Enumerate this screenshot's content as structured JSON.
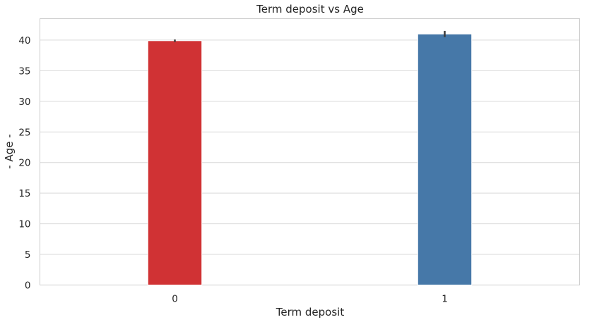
{
  "chart_data": {
    "type": "bar",
    "title": "Term deposit vs Age",
    "xlabel": "Term deposit",
    "ylabel": "- Age -",
    "categories": [
      "0",
      "1"
    ],
    "values": [
      39.9,
      41.0
    ],
    "error_bars": [
      [
        39.7,
        40.1
      ],
      [
        40.5,
        41.5
      ]
    ],
    "colors": [
      "#d03234",
      "#4678a8"
    ],
    "ylim": [
      0,
      43.5
    ],
    "yticks": [
      0,
      5,
      10,
      15,
      20,
      25,
      30,
      35,
      40
    ],
    "grid": "y-axis"
  }
}
